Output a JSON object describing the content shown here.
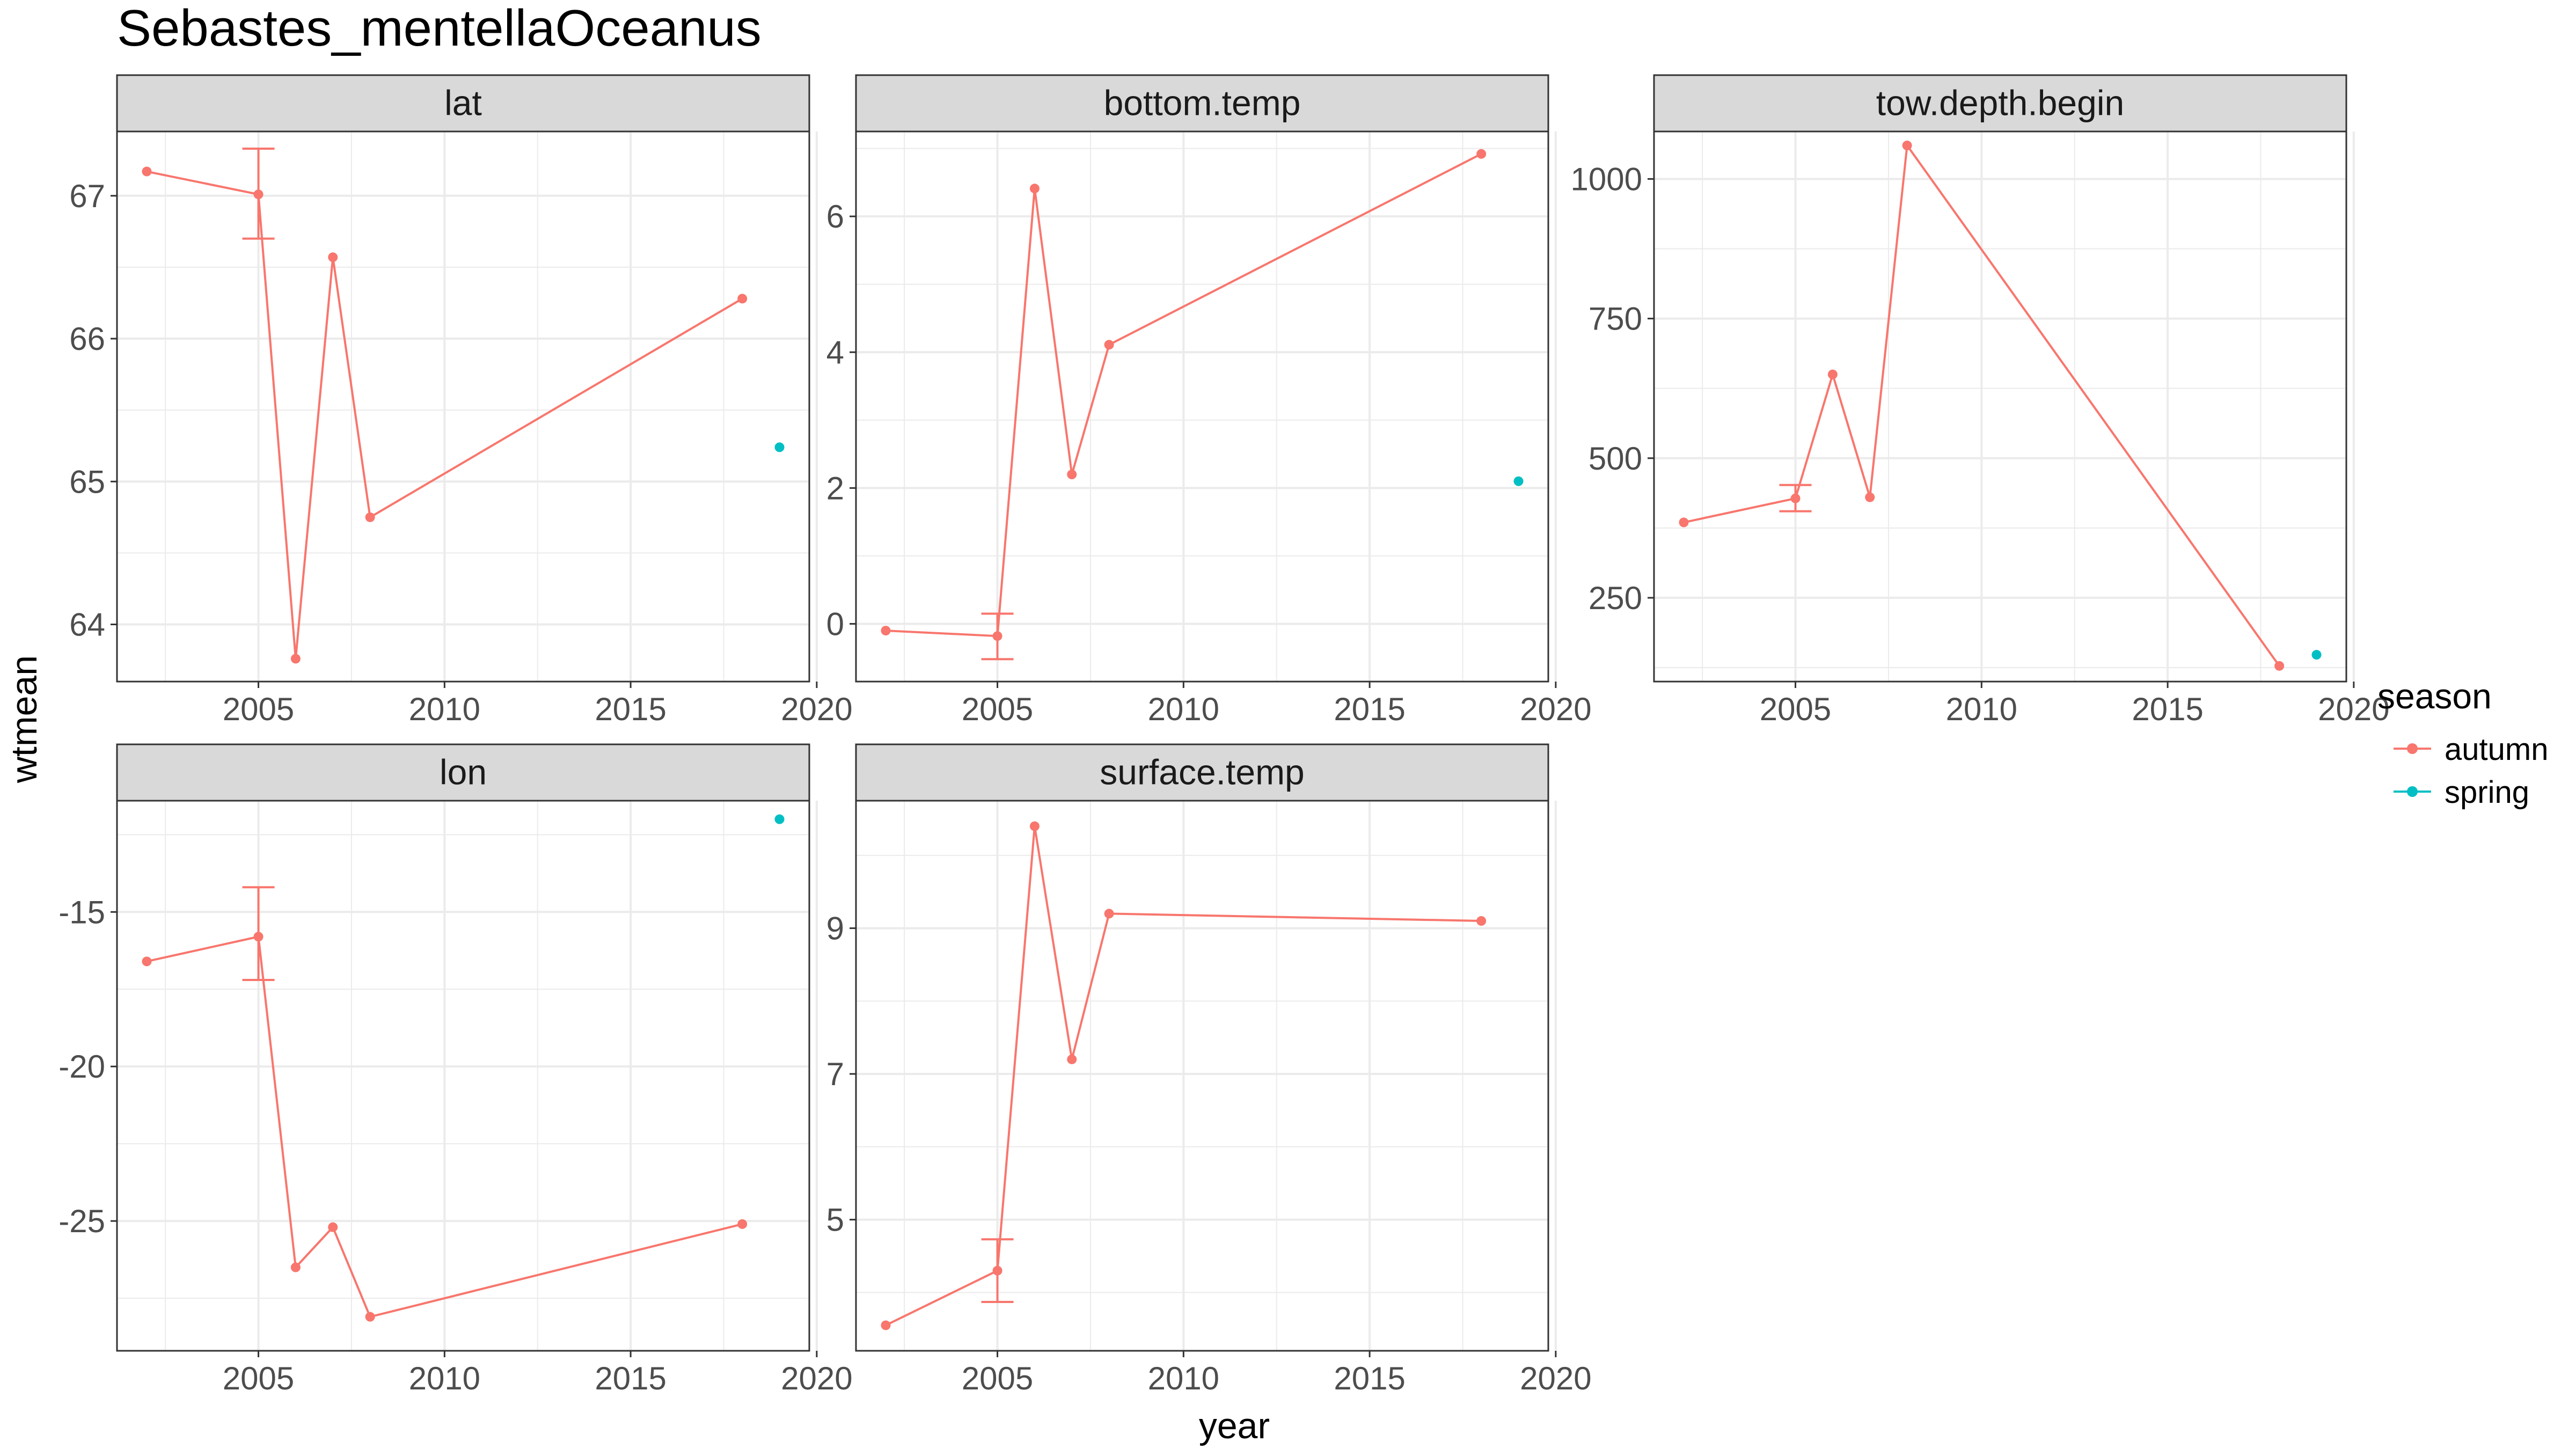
{
  "title": "Sebastes_mentellaOceanus",
  "xlabel": "year",
  "ylabel": "wtmean",
  "legend": {
    "title": "season",
    "placement": "right",
    "items": [
      {
        "label": "autumn",
        "color": "#F8766D"
      },
      {
        "label": "spring",
        "color": "#00BFC4"
      }
    ]
  },
  "colors": {
    "autumn": "#F8766D",
    "spring": "#00BFC4",
    "strip_fill": "#D9D9D9",
    "grid": "#EBEBEB",
    "panel_border": "#333333",
    "tick_text": "#4D4D4D"
  },
  "chart_data": [
    {
      "type": "line",
      "panel": "lat",
      "xlim": [
        2001.2,
        2019.8
      ],
      "ylim": [
        63.6,
        67.45
      ],
      "x_ticks": [
        2005,
        2010,
        2015,
        2020
      ],
      "x_tick_labels": [
        "2005",
        "2010",
        "2015",
        "2020"
      ],
      "y_ticks": [
        64,
        65,
        66,
        67
      ],
      "y_tick_labels": [
        "64",
        "65",
        "66",
        "67"
      ],
      "grid": true,
      "series": [
        {
          "name": "autumn",
          "x": [
            2002,
            2005,
            2006,
            2007,
            2008,
            2018
          ],
          "y": [
            67.17,
            67.01,
            63.76,
            66.57,
            64.75,
            66.28
          ],
          "errorbars": [
            {
              "x": 2005,
              "low": 66.7,
              "high": 67.33
            }
          ]
        },
        {
          "name": "spring",
          "x": [
            2019
          ],
          "y": [
            65.24
          ]
        }
      ]
    },
    {
      "type": "line",
      "panel": "bottom.temp",
      "xlim": [
        2001.2,
        2019.8
      ],
      "ylim": [
        -0.85,
        7.25
      ],
      "x_ticks": [
        2005,
        2010,
        2015,
        2020
      ],
      "x_tick_labels": [
        "2005",
        "2010",
        "2015",
        "2020"
      ],
      "y_ticks": [
        0,
        2,
        4,
        6
      ],
      "y_tick_labels": [
        "0",
        "2",
        "4",
        "6"
      ],
      "grid": true,
      "series": [
        {
          "name": "autumn",
          "x": [
            2002,
            2005,
            2006,
            2007,
            2008,
            2018
          ],
          "y": [
            -0.1,
            -0.18,
            6.41,
            2.2,
            4.11,
            6.92
          ],
          "errorbars": [
            {
              "x": 2005,
              "low": -0.52,
              "high": 0.15
            }
          ]
        },
        {
          "name": "spring",
          "x": [
            2019
          ],
          "y": [
            2.1
          ]
        }
      ]
    },
    {
      "type": "line",
      "panel": "tow.depth.begin",
      "xlim": [
        2001.2,
        2019.8
      ],
      "ylim": [
        100,
        1085
      ],
      "x_ticks": [
        2005,
        2010,
        2015,
        2020
      ],
      "x_tick_labels": [
        "2005",
        "2010",
        "2015",
        "2020"
      ],
      "y_ticks": [
        250,
        500,
        750,
        1000
      ],
      "y_tick_labels": [
        "250",
        "500",
        "750",
        "1000"
      ],
      "grid": true,
      "series": [
        {
          "name": "autumn",
          "x": [
            2002,
            2005,
            2006,
            2007,
            2008,
            2018
          ],
          "y": [
            385,
            428,
            650,
            430,
            1060,
            128
          ],
          "errorbars": [
            {
              "x": 2005,
              "low": 405,
              "high": 452
            }
          ]
        },
        {
          "name": "spring",
          "x": [
            2019
          ],
          "y": [
            148
          ]
        }
      ]
    },
    {
      "type": "line",
      "panel": "lon",
      "xlim": [
        2001.2,
        2019.8
      ],
      "ylim": [
        -29.2,
        -11.4
      ],
      "x_ticks": [
        2005,
        2010,
        2015,
        2020
      ],
      "x_tick_labels": [
        "2005",
        "2010",
        "2015",
        "2020"
      ],
      "y_ticks": [
        -15,
        -20,
        -25
      ],
      "y_tick_labels": [
        "-15",
        "-20",
        "-25"
      ],
      "grid": true,
      "series": [
        {
          "name": "autumn",
          "x": [
            2002,
            2005,
            2006,
            2007,
            2008,
            2018
          ],
          "y": [
            -16.6,
            -15.8,
            -26.5,
            -25.2,
            -28.1,
            -25.1
          ],
          "errorbars": [
            {
              "x": 2005,
              "low": -17.2,
              "high": -14.2
            }
          ]
        },
        {
          "name": "spring",
          "x": [
            2019
          ],
          "y": [
            -12.0
          ]
        }
      ]
    },
    {
      "type": "line",
      "panel": "surface.temp",
      "xlim": [
        2001.2,
        2019.8
      ],
      "ylim": [
        3.2,
        10.75
      ],
      "x_ticks": [
        2005,
        2010,
        2015,
        2020
      ],
      "x_tick_labels": [
        "2005",
        "2010",
        "2015",
        "2020"
      ],
      "y_ticks": [
        5,
        7,
        9
      ],
      "y_tick_labels": [
        "5",
        "7",
        "9"
      ],
      "grid": true,
      "series": [
        {
          "name": "autumn",
          "x": [
            2002,
            2005,
            2006,
            2007,
            2008,
            2018
          ],
          "y": [
            3.55,
            4.3,
            10.4,
            7.2,
            9.2,
            9.1
          ],
          "errorbars": [
            {
              "x": 2005,
              "low": 3.87,
              "high": 4.73
            }
          ]
        }
      ]
    }
  ]
}
